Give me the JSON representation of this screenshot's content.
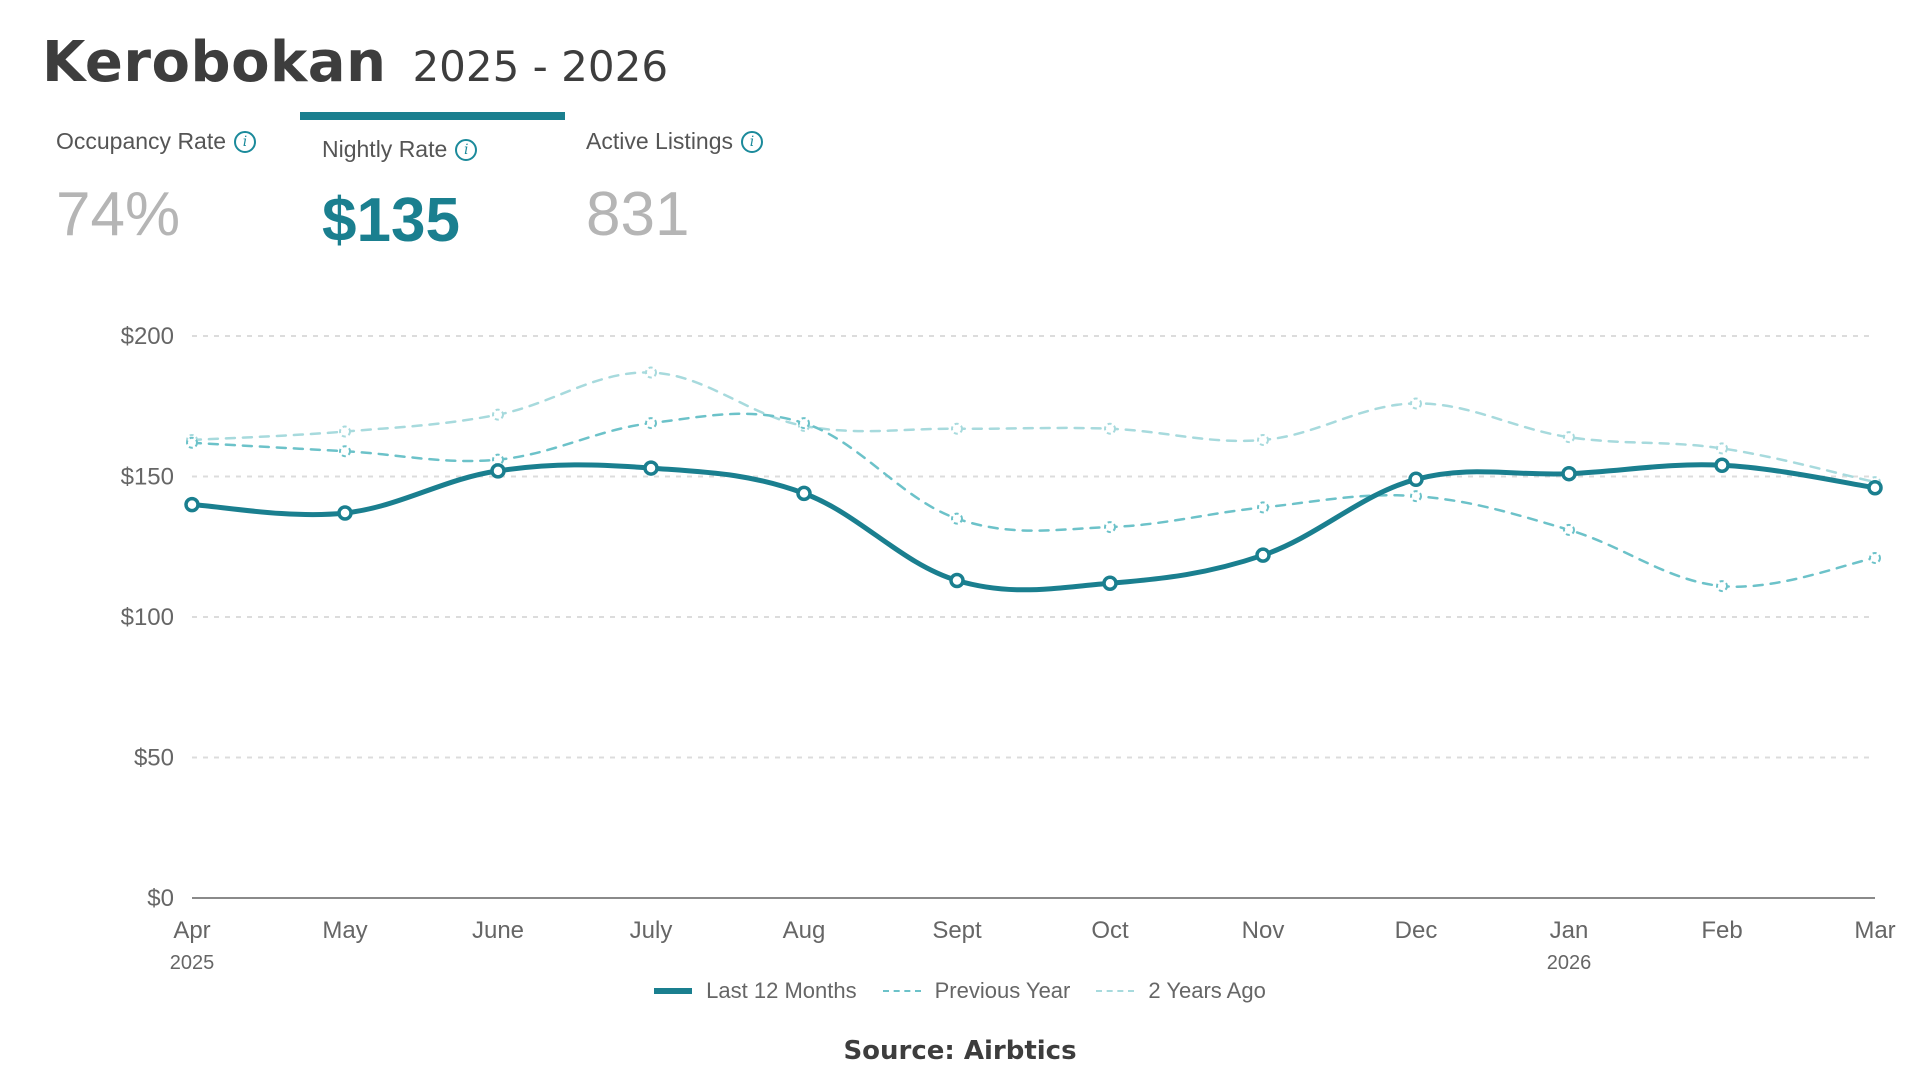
{
  "header": {
    "title": "Kerobokan",
    "subtitle": "2025 - 2026"
  },
  "tabs": [
    {
      "label": "Occupancy Rate",
      "value": "74%",
      "active": false
    },
    {
      "label": "Nightly Rate",
      "value": "$135",
      "active": true
    },
    {
      "label": "Active Listings",
      "value": "831",
      "active": false
    }
  ],
  "source": "Source: Airbtics",
  "colors": {
    "accent": "#1a7f8f",
    "previous_year": "#6cc2c9",
    "two_years_ago": "#a7dadd",
    "grid": "#dcdcdc"
  },
  "chart_data": {
    "type": "line",
    "categories": [
      "Apr",
      "May",
      "June",
      "July",
      "Aug",
      "Sept",
      "Oct",
      "Nov",
      "Dec",
      "Jan",
      "Feb",
      "Mar"
    ],
    "year_labels": [
      {
        "index": 0,
        "label": "2025"
      },
      {
        "index": 9,
        "label": "2026"
      }
    ],
    "ylim": [
      0,
      200
    ],
    "yticks": [
      0,
      50,
      100,
      150,
      200
    ],
    "ytick_labels": [
      "$0",
      "$50",
      "$100",
      "$150",
      "$200"
    ],
    "grid": true,
    "legend_position": "bottom",
    "series": [
      {
        "name": "Last 12 Months",
        "style": "solid",
        "values": [
          140,
          137,
          152,
          153,
          144,
          113,
          112,
          122,
          149,
          151,
          154,
          146
        ]
      },
      {
        "name": "Previous Year",
        "style": "dashed",
        "values": [
          162,
          159,
          156,
          169,
          169,
          135,
          132,
          139,
          143,
          131,
          111,
          121
        ]
      },
      {
        "name": "2 Years Ago",
        "style": "dashed-light",
        "values": [
          163,
          166,
          172,
          187,
          168,
          167,
          167,
          163,
          176,
          164,
          160,
          148
        ]
      }
    ]
  }
}
